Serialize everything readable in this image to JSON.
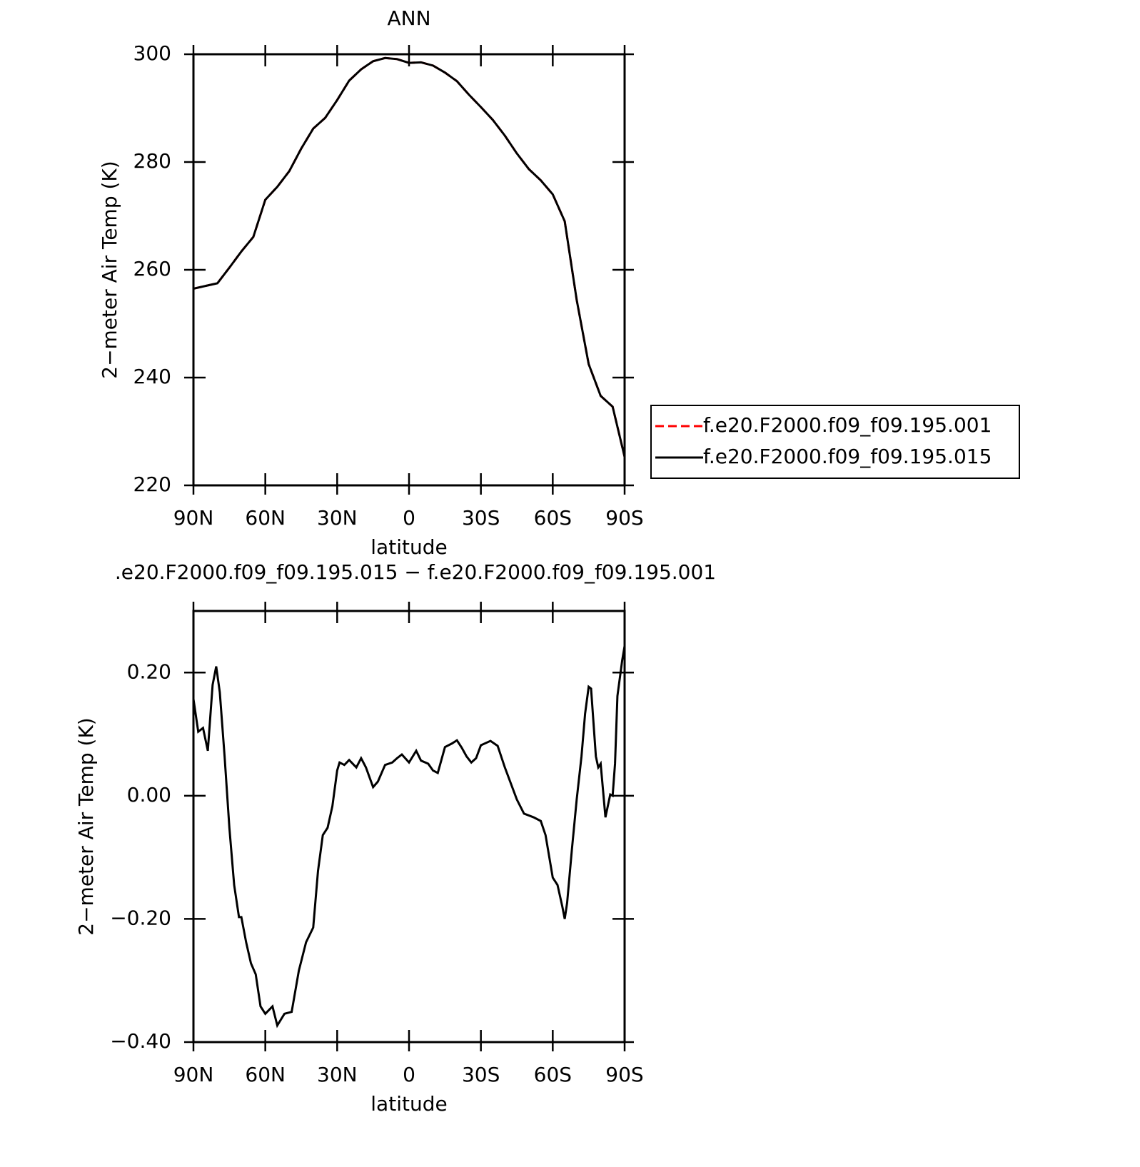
{
  "chart_data": [
    {
      "type": "line",
      "title": "ANN",
      "x_label": "latitude",
      "y_label": "2−meter Air Temp (K)",
      "x": [
        90,
        85,
        80,
        75,
        70,
        65,
        60,
        55,
        50,
        45,
        40,
        35,
        30,
        25,
        20,
        15,
        10,
        5,
        0,
        -5,
        -10,
        -15,
        -20,
        -25,
        -30,
        -35,
        -40,
        -45,
        -50,
        -55,
        -60,
        -65,
        -70,
        -75,
        -80,
        -85,
        -90
      ],
      "series": [
        {
          "name": "f.e20.F2000.f09_f09.195.001",
          "color": "#ff0000",
          "style": "dashed",
          "values": [
            256.5,
            257,
            257.5,
            260.4,
            263.4,
            266.1,
            273,
            275.4,
            278.3,
            282.5,
            286.2,
            288.2,
            291.5,
            295.1,
            297.2,
            298.7,
            299.3,
            299.1,
            298.4,
            298.5,
            297.9,
            296.6,
            295,
            292.5,
            290.2,
            287.8,
            284.9,
            281.6,
            278.7,
            276.6,
            274,
            269,
            254.4,
            242.5,
            236.6,
            234.6,
            225.3
          ]
        },
        {
          "name": "f.e20.F2000.f09_f09.195.015",
          "color": "#000000",
          "style": "solid",
          "values": [
            256.5,
            257,
            257.5,
            260.4,
            263.4,
            266.1,
            273,
            275.4,
            278.3,
            282.5,
            286.2,
            288.2,
            291.5,
            295.1,
            297.2,
            298.7,
            299.3,
            299.1,
            298.4,
            298.5,
            297.9,
            296.6,
            295,
            292.5,
            290.2,
            287.8,
            284.9,
            281.6,
            278.7,
            276.6,
            274,
            269,
            254.4,
            242.5,
            236.6,
            234.6,
            225.3
          ]
        }
      ],
      "xlim": [
        90,
        -90
      ],
      "xticks": [
        {
          "value": 90,
          "label": "90N"
        },
        {
          "value": 60,
          "label": "60N"
        },
        {
          "value": 30,
          "label": "30N"
        },
        0,
        {
          "value": -30,
          "label": "30S"
        },
        {
          "value": -60,
          "label": "60S"
        },
        {
          "value": -90,
          "label": "90S"
        }
      ],
      "ylim": [
        220,
        300
      ],
      "yticks": [
        220,
        240,
        260,
        280,
        300
      ],
      "legend": "outside-right"
    },
    {
      "type": "line",
      "title": ".e20.F2000.f09_f09.195.015 − f.e20.F2000.f09_f09.195.001",
      "x_label": "latitude",
      "y_label": "2−meter Air Temp (K)",
      "x": [
        90,
        88,
        86,
        84,
        82,
        80.5,
        79,
        77,
        75,
        73,
        71,
        70,
        68,
        66,
        64,
        62,
        60,
        57,
        55,
        52,
        49,
        46,
        43,
        40,
        38,
        36,
        34,
        32,
        30,
        29,
        27,
        25,
        22,
        20,
        18,
        15,
        13,
        10,
        7,
        5,
        3,
        0,
        -3,
        -5,
        -8,
        -10,
        -12,
        -15,
        -18,
        -20,
        -22,
        -24,
        -26,
        -28,
        -30,
        -34,
        -37,
        -40,
        -45,
        -48,
        -52,
        -55,
        -57,
        -60,
        -62,
        -64,
        -65,
        -66,
        -68,
        -70,
        -72,
        -73.5,
        -75,
        -76,
        -78,
        -79,
        -80,
        -82,
        -84,
        -85,
        -86,
        -87,
        -89,
        -90
      ],
      "series": [
        {
          "color": "#000000",
          "style": "solid",
          "values": [
            0.157,
            0.104,
            0.11,
            0.073,
            0.18,
            0.21,
            0.168,
            0.064,
            -0.052,
            -0.145,
            -0.197,
            -0.197,
            -0.238,
            -0.272,
            -0.29,
            -0.342,
            -0.354,
            -0.342,
            -0.373,
            -0.354,
            -0.351,
            -0.284,
            -0.238,
            -0.214,
            -0.122,
            -0.064,
            -0.052,
            -0.017,
            0.041,
            0.054,
            0.05,
            0.058,
            0.046,
            0.061,
            0.046,
            0.014,
            0.023,
            0.05,
            0.054,
            0.061,
            0.067,
            0.054,
            0.073,
            0.057,
            0.052,
            0.041,
            0.037,
            0.079,
            0.085,
            0.09,
            0.078,
            0.064,
            0.054,
            0.061,
            0.082,
            0.089,
            0.081,
            0.046,
            -0.006,
            -0.029,
            -0.035,
            -0.041,
            -0.064,
            -0.133,
            -0.145,
            -0.18,
            -0.2,
            -0.174,
            -0.087,
            -0.006,
            0.064,
            0.133,
            0.177,
            0.174,
            0.064,
            0.046,
            0.052,
            -0.035,
            0.002,
            0,
            0.052,
            0.162,
            0.22,
            0.243
          ]
        }
      ],
      "xlim": [
        90,
        -90
      ],
      "xticks": [
        {
          "value": 90,
          "label": "90N"
        },
        {
          "value": 60,
          "label": "60N"
        },
        {
          "value": 30,
          "label": "30N"
        },
        0,
        {
          "value": -30,
          "label": "30S"
        },
        {
          "value": -60,
          "label": "60S"
        },
        {
          "value": -90,
          "label": "90S"
        }
      ],
      "ylim": [
        -0.4,
        0.3
      ],
      "yticks": [
        {
          "value": -0.4,
          "label": "−0.40"
        },
        {
          "value": -0.2,
          "label": "−0.20"
        },
        {
          "value": 0,
          "label": "0.00"
        },
        {
          "value": 0.2,
          "label": "0.20"
        }
      ]
    }
  ]
}
